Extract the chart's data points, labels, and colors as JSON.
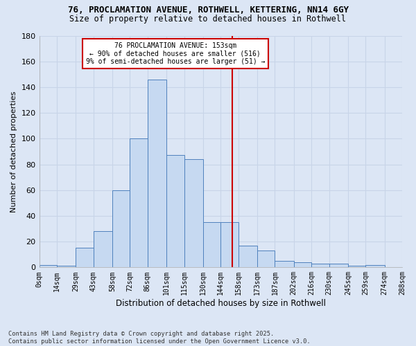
{
  "title_line1": "76, PROCLAMATION AVENUE, ROTHWELL, KETTERING, NN14 6GY",
  "title_line2": "Size of property relative to detached houses in Rothwell",
  "xlabel": "Distribution of detached houses by size in Rothwell",
  "ylabel": "Number of detached properties",
  "bin_edges": [
    0,
    14,
    29,
    43,
    58,
    72,
    86,
    101,
    115,
    130,
    144,
    158,
    173,
    187,
    202,
    216,
    230,
    245,
    259,
    274,
    288
  ],
  "bar_heights": [
    2,
    1,
    15,
    28,
    60,
    100,
    146,
    87,
    84,
    35,
    35,
    17,
    13,
    5,
    4,
    3,
    3,
    1,
    2,
    0
  ],
  "bar_color": "#c6d9f1",
  "bar_edge_color": "#4f81bd",
  "vline_x": 153,
  "vline_color": "#cc0000",
  "annotation_text": "76 PROCLAMATION AVENUE: 153sqm\n← 90% of detached houses are smaller (516)\n9% of semi-detached houses are larger (51) →",
  "annotation_box_color": "#cc0000",
  "ylim": [
    0,
    180
  ],
  "yticks": [
    0,
    20,
    40,
    60,
    80,
    100,
    120,
    140,
    160,
    180
  ],
  "tick_labels": [
    "0sqm",
    "14sqm",
    "29sqm",
    "43sqm",
    "58sqm",
    "72sqm",
    "86sqm",
    "101sqm",
    "115sqm",
    "130sqm",
    "144sqm",
    "158sqm",
    "173sqm",
    "187sqm",
    "202sqm",
    "216sqm",
    "230sqm",
    "245sqm",
    "259sqm",
    "274sqm",
    "288sqm"
  ],
  "grid_color": "#c8d4e8",
  "bg_color": "#dce6f5",
  "fig_bg_color": "#dce6f5",
  "footnote": "Contains HM Land Registry data © Crown copyright and database right 2025.\nContains public sector information licensed under the Open Government Licence v3.0."
}
